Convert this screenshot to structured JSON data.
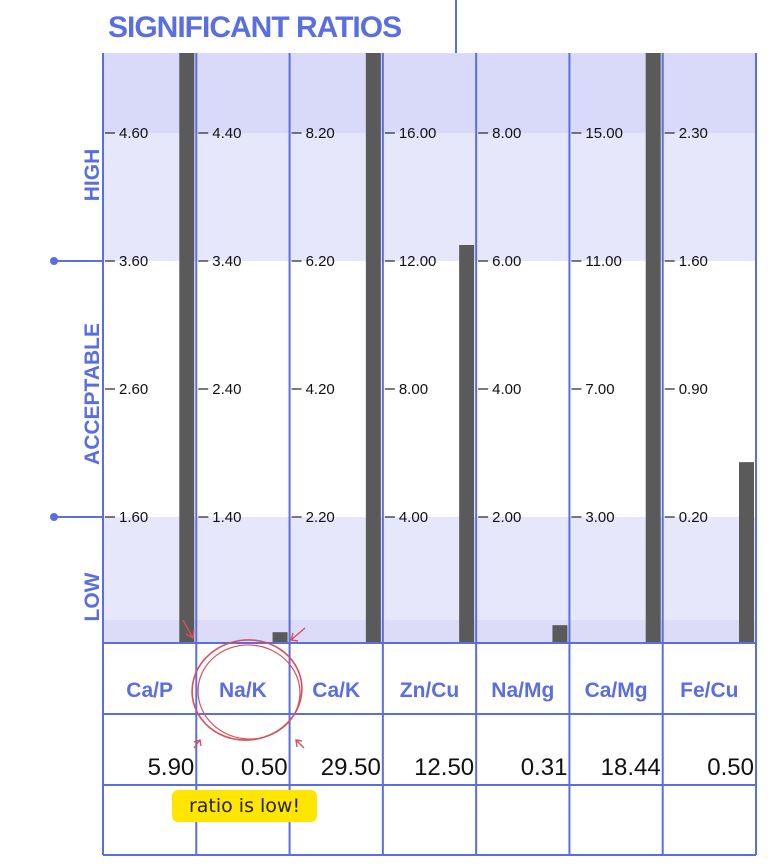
{
  "chart_data": {
    "type": "bar",
    "title": "SIGNIFICANT RATIOS",
    "zones": [
      {
        "name": "HIGH",
        "position": "top"
      },
      {
        "name": "ACCEPTABLE",
        "position": "middle"
      },
      {
        "name": "LOW",
        "position": "bottom"
      }
    ],
    "categories": [
      "Ca/P",
      "Na/K",
      "Ca/K",
      "Zn/Cu",
      "Na/Mg",
      "Ca/Mg",
      "Fe/Cu"
    ],
    "values": [
      5.9,
      0.5,
      29.5,
      12.5,
      0.31,
      18.44,
      0.5
    ],
    "value_labels": [
      "5.90",
      "0.50",
      "29.50",
      "12.50",
      "0.31",
      "18.44",
      "0.50"
    ],
    "tick_labels": [
      [
        "4.60",
        "3.60",
        "2.60",
        "1.60"
      ],
      [
        "4.40",
        "3.40",
        "2.40",
        "1.40"
      ],
      [
        "8.20",
        "6.20",
        "4.20",
        "2.20"
      ],
      [
        "16.00",
        "12.00",
        "8.00",
        "4.00"
      ],
      [
        "8.00",
        "6.00",
        "4.00",
        "2.00"
      ],
      [
        "15.00",
        "11.00",
        "7.00",
        "3.00"
      ],
      [
        "2.30",
        "1.60",
        "0.90",
        "0.20"
      ]
    ],
    "tick_values": [
      [
        4.6,
        3.6,
        2.6,
        1.6
      ],
      [
        4.4,
        3.4,
        2.4,
        1.4
      ],
      [
        8.2,
        6.2,
        4.2,
        2.2
      ],
      [
        16,
        12,
        8,
        4
      ],
      [
        8,
        6,
        4,
        2
      ],
      [
        15,
        11,
        7,
        3
      ],
      [
        2.3,
        1.6,
        0.9,
        0.2
      ]
    ],
    "colors": {
      "accent": "#5a6ee0",
      "band": "#d9daf9",
      "band_light": "#e7e7fb",
      "bar": "#5a5a5a",
      "annotation": "#d94f5c"
    }
  },
  "annotation": {
    "text": "ratio is low!",
    "highlight_color": "#ffe600"
  }
}
